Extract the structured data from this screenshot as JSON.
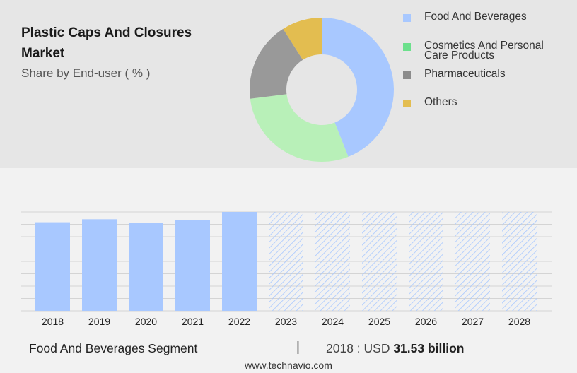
{
  "header": {
    "title": "Plastic Caps And Closures Market",
    "subtitle": "Share by End-user ( % )"
  },
  "colors": {
    "food": "#a8c8ff",
    "cosmetics": "#b8f0b8",
    "pharma": "#999999",
    "others": "#e3bd50",
    "legend_cosmetics": "#6ce08c",
    "legend_pharma": "#8c8c8c",
    "bar": "#a8c8ff",
    "hatch": "#a8c8ff",
    "grid": "#d4d4d4"
  },
  "chart_data": [
    {
      "type": "pie",
      "donut": true,
      "title": "Plastic Caps And Closures Market",
      "subtitle": "Share by End-user ( % )",
      "categories": [
        "Food And Beverages",
        "Cosmetics And Personal Care Products",
        "Pharmaceuticals",
        "Others"
      ],
      "values": [
        44,
        29,
        18,
        9
      ],
      "legend_position": "right"
    },
    {
      "type": "bar",
      "categories": [
        "2018",
        "2019",
        "2020",
        "2021",
        "2022",
        "2023",
        "2024",
        "2025",
        "2026",
        "2027",
        "2028"
      ],
      "values": [
        31.53,
        32.6,
        31.4,
        32.4,
        35.2,
        null,
        null,
        null,
        null,
        null,
        null
      ],
      "forecast_years": [
        "2023",
        "2024",
        "2025",
        "2026",
        "2027",
        "2028"
      ],
      "ylim": [
        0,
        35.2
      ],
      "grid": true,
      "xlabel": "",
      "ylabel": ""
    }
  ],
  "legend": [
    {
      "label": "Food And Beverages",
      "color_key": "food"
    },
    {
      "label": "Cosmetics And Personal Care Products",
      "color_key": "legend_cosmetics"
    },
    {
      "label": "Pharmaceuticals",
      "color_key": "legend_pharma"
    },
    {
      "label": "Others",
      "color_key": "others"
    }
  ],
  "footer": {
    "segment": "Food And Beverages Segment",
    "divider": "|",
    "year_label": "2018 : USD ",
    "value": "31.53 billion",
    "site": "www.technavio.com"
  }
}
